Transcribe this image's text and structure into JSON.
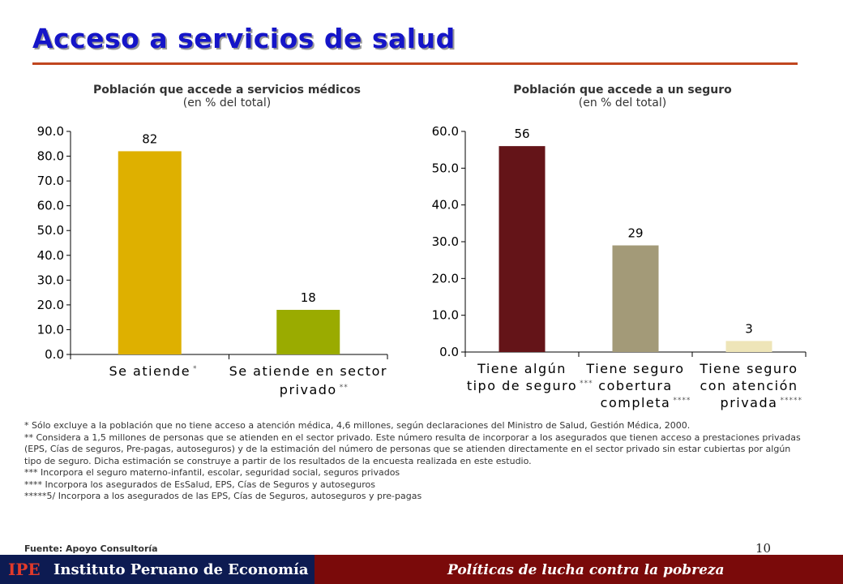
{
  "slide": {
    "title": "Acceso a servicios de salud",
    "page_number": "10",
    "source": "Fuente: Apoyo Consultoría",
    "notes": [
      "* Sólo excluye a la población que no tiene acceso a atención médica, 4,6 millones, según declaraciones del Ministro de Salud, Gestión Médica, 2000.",
      "** Considera a 1,5 millones de personas que se atienden en el sector privado. Este número resulta de incorporar a los asegurados que tienen acceso a prestaciones privadas (EPS, Cías de seguros, Pre-pagas, autoseguros) y de la estimación del número de personas que se atienden directamente en el sector privado sin estar cubiertas por algún tipo de seguro. Dicha estimación se construye a partir de los resultados de la encuesta realizada en este estudio.",
      "*** Incorpora el seguro materno-infantil, escolar, seguridad social, seguros privados",
      "**** Incorpora los asegurados de EsSalud, EPS, Cías de Seguros y autoseguros",
      "*****5/ Incorpora a los asegurados de las EPS, Cías de Seguros, autoseguros y pre-pagas"
    ],
    "footer": {
      "logo": "IPE",
      "institute": "Instituto Peruano de Economía",
      "right": "Políticas de lucha contra la pobreza"
    }
  },
  "chart_data": [
    {
      "type": "bar",
      "title": "Población que accede a servicios médicos",
      "subtitle": "(en % del total)",
      "categories": [
        [
          "Se atiende"
        ],
        [
          "Se atiende en sector",
          "privado"
        ]
      ],
      "category_marks": [
        "*",
        "**"
      ],
      "values": [
        82,
        18
      ],
      "value_labels": [
        "82",
        "18"
      ],
      "colors": [
        "#deb000",
        "#9aab00"
      ],
      "ylim": [
        0,
        90
      ],
      "yticks": [
        "0.0",
        "10.0",
        "20.0",
        "30.0",
        "40.0",
        "50.0",
        "60.0",
        "70.0",
        "80.0",
        "90.0"
      ],
      "grid": false
    },
    {
      "type": "bar",
      "title": "Población que accede a un seguro",
      "subtitle": "(en % del total)",
      "categories": [
        [
          "Tiene algún",
          "tipo de seguro"
        ],
        [
          "Tiene seguro",
          "cobertura",
          "completa"
        ],
        [
          "Tiene seguro",
          "con atención",
          "privada"
        ]
      ],
      "category_marks": [
        "***",
        "****",
        "*****"
      ],
      "values": [
        56,
        29,
        3
      ],
      "value_labels": [
        "56",
        "29",
        "3"
      ],
      "colors": [
        "#641418",
        "#a39a78",
        "#eee5b8"
      ],
      "ylim": [
        0,
        60
      ],
      "yticks": [
        "0.0",
        "10.0",
        "20.0",
        "30.0",
        "40.0",
        "50.0",
        "60.0"
      ],
      "grid": false
    }
  ]
}
